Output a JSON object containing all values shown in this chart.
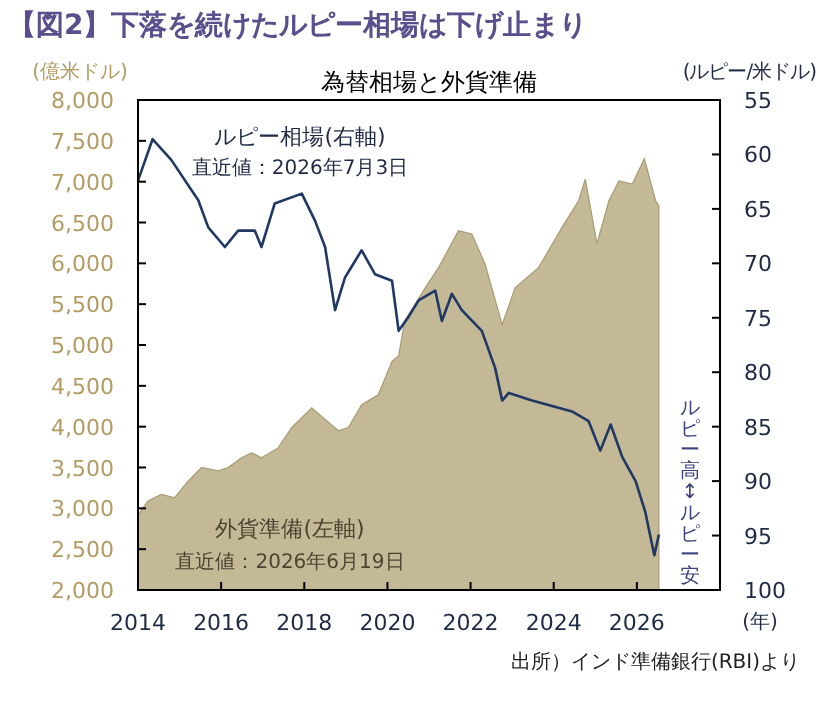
{
  "chart_data": {
    "type": "area",
    "title": "【図2】下落を続けたルピー相場は下げ止まり",
    "subtitle": "為替相場と外貨準備",
    "ylabel": "(億米ドル)",
    "y2label": "(ルピー/米ドル)",
    "xlabel": "(年)",
    "xlim": [
      2014,
      2028
    ],
    "xticks": [
      2014,
      2016,
      2018,
      2020,
      2022,
      2024,
      2026
    ],
    "ylim": [
      2000,
      8000
    ],
    "yticks": [
      {
        "value": 2000,
        "label": "2,000"
      },
      {
        "value": 2500,
        "label": "2,500"
      },
      {
        "value": 3000,
        "label": "3,000"
      },
      {
        "value": 3500,
        "label": "3,500"
      },
      {
        "value": 4000,
        "label": "4,000"
      },
      {
        "value": 4500,
        "label": "4,500"
      },
      {
        "value": 5000,
        "label": "5,000"
      },
      {
        "value": 5500,
        "label": "5,500"
      },
      {
        "value": 6000,
        "label": "6,000"
      },
      {
        "value": 6500,
        "label": "6,500"
      },
      {
        "value": 7000,
        "label": "7,000"
      },
      {
        "value": 7500,
        "label": "7,500"
      },
      {
        "value": 8000,
        "label": "8,000"
      }
    ],
    "y2lim": [
      100,
      55
    ],
    "y2ticks": [
      55,
      60,
      65,
      70,
      75,
      80,
      85,
      90,
      95,
      100
    ],
    "series": [
      {
        "name": "外貨準備(左軸)",
        "type": "area",
        "color": "#c4b996",
        "x": [
          2014.0,
          2014.24,
          2014.56,
          2014.88,
          2015.2,
          2015.53,
          2015.93,
          2016.17,
          2016.49,
          2016.73,
          2016.97,
          2017.37,
          2017.7,
          2018.18,
          2018.34,
          2018.82,
          2019.06,
          2019.38,
          2019.78,
          2020.11,
          2020.27,
          2020.42,
          2020.91,
          2021.23,
          2021.71,
          2022.03,
          2022.35,
          2022.76,
          2023.07,
          2023.64,
          2024.2,
          2024.6,
          2024.76,
          2025.04,
          2025.33,
          2025.57,
          2025.89,
          2026.18,
          2026.45,
          2026.53
        ],
        "values": [
          2920,
          3090,
          3170,
          3130,
          3330,
          3500,
          3460,
          3500,
          3620,
          3680,
          3620,
          3740,
          3990,
          4230,
          4160,
          3950,
          3990,
          4270,
          4390,
          4800,
          4870,
          5300,
          5700,
          5950,
          6400,
          6360,
          5990,
          5250,
          5700,
          5950,
          6440,
          6770,
          7030,
          6240,
          6770,
          7010,
          6970,
          7280,
          6770,
          6700
        ]
      },
      {
        "name": "ルピー相場(右軸)",
        "type": "line",
        "axis": "y2",
        "color": "#1f3864",
        "x": [
          2014.0,
          2014.35,
          2014.8,
          2015.45,
          2015.69,
          2016.09,
          2016.41,
          2016.81,
          2016.97,
          2017.29,
          2017.94,
          2018.26,
          2018.5,
          2018.74,
          2018.98,
          2019.38,
          2019.7,
          2020.11,
          2020.27,
          2020.51,
          2020.75,
          2021.15,
          2021.31,
          2021.55,
          2021.79,
          2022.27,
          2022.59,
          2022.76,
          2022.92,
          2023.48,
          2023.96,
          2024.44,
          2024.84,
          2025.12,
          2025.37,
          2025.65,
          2025.97,
          2026.2,
          2026.42,
          2026.53
        ],
        "values": [
          62.4,
          58.6,
          60.5,
          64.2,
          66.7,
          68.5,
          67.0,
          67.0,
          68.5,
          64.5,
          63.6,
          66.1,
          68.5,
          74.3,
          71.3,
          68.8,
          71.0,
          71.6,
          76.2,
          74.9,
          73.4,
          72.5,
          75.3,
          72.8,
          74.3,
          76.2,
          79.6,
          82.6,
          81.9,
          82.6,
          83.1,
          83.6,
          84.5,
          87.2,
          84.8,
          87.8,
          90.0,
          92.8,
          96.8,
          94.9
        ]
      }
    ],
    "annotations": [
      "直近値：2026年7月3日",
      "直近値：2026年6月19日",
      "ルピー高↕ルピー安",
      "出所）インド準備銀行(RBI)より"
    ]
  }
}
